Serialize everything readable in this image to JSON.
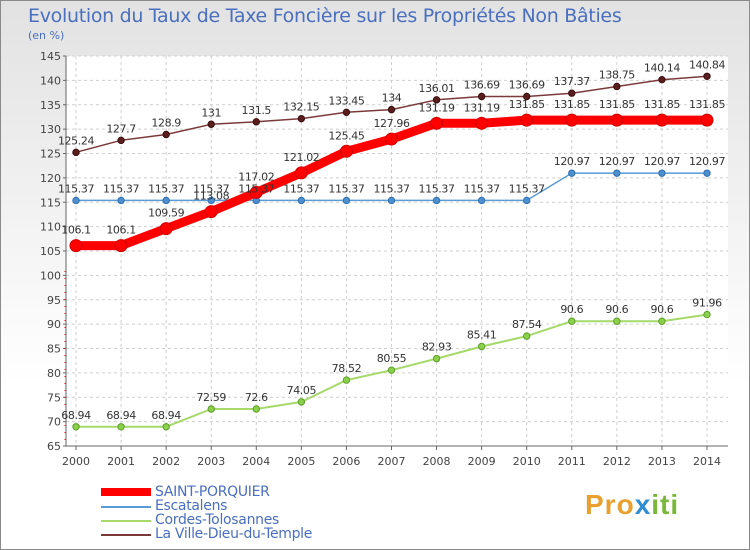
{
  "title": "Evolution du Taux de Taxe Foncière sur les Propriétés Non Bâties",
  "subtitle": "(en %)",
  "brand": {
    "parts": [
      "Pro",
      "x",
      "iti"
    ],
    "colors": {
      "pro": "#e8a030",
      "x": "#2f8fd0",
      "iti": "#7ab83a"
    }
  },
  "chart_data": {
    "type": "line",
    "title": "Evolution du Taux de Taxe Foncière sur les Propriétés Non Bâties",
    "ylabel": "(en %)",
    "xlabel": "",
    "ylim": [
      65,
      145
    ],
    "yticks": [
      65,
      70,
      75,
      80,
      85,
      90,
      95,
      100,
      105,
      110,
      115,
      120,
      125,
      130,
      135,
      140,
      145
    ],
    "x": [
      "2000",
      "2001",
      "2002",
      "2003",
      "2004",
      "2005",
      "2006",
      "2007",
      "2008",
      "2009",
      "2010",
      "2011",
      "2012",
      "2013",
      "2014"
    ],
    "grid": true,
    "legend_position": "bottom-left",
    "series": [
      {
        "name": "SAINT-PORQUIER",
        "color": "#ff0000",
        "values": [
          106.1,
          106.1,
          109.59,
          113.08,
          117.02,
          121.02,
          125.45,
          127.96,
          131.19,
          131.19,
          131.85,
          131.85,
          131.85,
          131.85,
          131.85
        ],
        "labels": [
          "106.1",
          "106.1",
          "109.59",
          "113.08",
          "117.02",
          "121.02",
          "125.45",
          "127.96",
          "131.19",
          "131.19",
          "131.85",
          "131.85",
          "131.85",
          "131.85",
          "131.85"
        ]
      },
      {
        "name": "Escatalens",
        "color": "#5b9bd5",
        "values": [
          115.37,
          115.37,
          115.37,
          115.37,
          115.37,
          115.37,
          115.37,
          115.37,
          115.37,
          115.37,
          115.37,
          120.97,
          120.97,
          120.97,
          120.97
        ],
        "labels": [
          "115.37",
          "115.37",
          "115.37",
          "115.37",
          "115.37",
          "115.37",
          "115.37",
          "115.37",
          "115.37",
          "115.37",
          "115.37",
          "120.97",
          "120.97",
          "120.97",
          "120.97"
        ]
      },
      {
        "name": "Cordes-Tolosannes",
        "color": "#a6d96a",
        "values": [
          68.94,
          68.94,
          68.94,
          72.59,
          72.6,
          74.05,
          78.52,
          80.55,
          82.93,
          85.41,
          87.54,
          90.6,
          90.6,
          90.6,
          91.96
        ],
        "labels": [
          "68.94",
          "68.94",
          "68.94",
          "72.59",
          "72.6",
          "74.05",
          "78.52",
          "80.55",
          "82.93",
          "85.41",
          "87.54",
          "90.6",
          "90.6",
          "90.6",
          "91.96"
        ]
      },
      {
        "name": "La Ville-Dieu-du-Temple",
        "color": "#7b3a3a",
        "values": [
          125.24,
          127.7,
          128.9,
          131,
          131.5,
          132.15,
          133.45,
          134,
          136.01,
          136.69,
          136.69,
          137.37,
          138.75,
          140.14,
          140.84
        ],
        "labels": [
          "125.24",
          "127.7",
          "128.9",
          "131",
          "131.5",
          "132.15",
          "133.45",
          "134",
          "136.01",
          "136.69",
          "136.69",
          "137.37",
          "138.75",
          "140.14",
          "140.84"
        ]
      }
    ]
  }
}
